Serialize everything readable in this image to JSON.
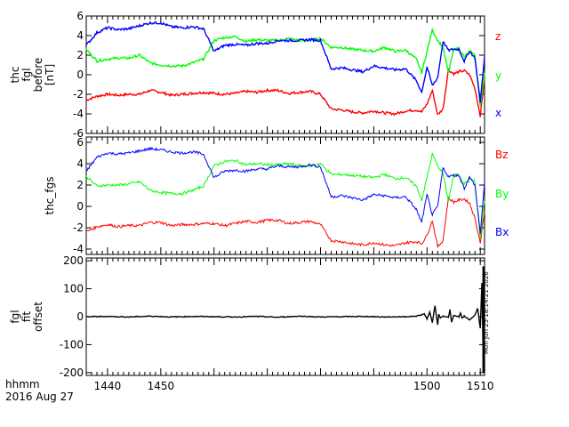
{
  "chart_data": [
    {
      "type": "line",
      "ylabel": [
        "thc",
        "fgl",
        "before",
        "[nT]"
      ],
      "ylim": [
        -6,
        6
      ],
      "yticks": [
        6,
        4,
        2,
        0,
        -2,
        -4,
        -6
      ],
      "xlim": [
        1436.0,
        1510.8
      ],
      "legend_placement": "right",
      "series": [
        {
          "name": "z",
          "color": "#ff0000",
          "x": [
            1436,
            1438,
            1440,
            1442,
            1444,
            1446,
            1448,
            1450,
            1452,
            1454,
            1456,
            1458,
            1460,
            1462,
            1464,
            1466,
            1468,
            1470,
            1472,
            1474,
            1476,
            1478,
            1480,
            1482,
            1484,
            1486,
            1488,
            1490,
            1492,
            1494,
            1496,
            1498,
            1499,
            1500,
            1501,
            1502,
            1503,
            1504,
            1505,
            1506,
            1507,
            1508,
            1509,
            1510,
            1510.8
          ],
          "values": [
            -2.6,
            -2.2,
            -2.0,
            -2.1,
            -2.0,
            -2.0,
            -1.6,
            -1.8,
            -2.1,
            -2.0,
            -1.9,
            -1.8,
            -1.9,
            -2.0,
            -1.9,
            -1.7,
            -1.8,
            -1.6,
            -1.6,
            -1.9,
            -1.8,
            -1.7,
            -2.0,
            -3.5,
            -3.6,
            -3.8,
            -3.9,
            -3.7,
            -3.9,
            -4.0,
            -3.7,
            -3.6,
            -3.8,
            -3.0,
            -1.6,
            -4.1,
            -3.5,
            0.5,
            0.1,
            0.3,
            0.4,
            0.0,
            -1.4,
            -4.2,
            -0.3
          ]
        },
        {
          "name": "y",
          "color": "#00ff00",
          "x": [
            1436,
            1438,
            1440,
            1442,
            1444,
            1446,
            1448,
            1450,
            1452,
            1454,
            1456,
            1458,
            1460,
            1462,
            1464,
            1466,
            1468,
            1470,
            1472,
            1474,
            1476,
            1478,
            1480,
            1482,
            1484,
            1486,
            1488,
            1490,
            1492,
            1494,
            1496,
            1498,
            1499,
            1500,
            1501,
            1502,
            1503,
            1504,
            1505,
            1506,
            1507,
            1508,
            1509,
            1510,
            1510.8
          ],
          "values": [
            2.6,
            1.4,
            1.6,
            1.7,
            1.7,
            2.0,
            1.2,
            1.0,
            0.9,
            0.9,
            1.2,
            1.6,
            3.5,
            3.8,
            3.9,
            3.4,
            3.6,
            3.5,
            3.5,
            3.7,
            3.5,
            3.5,
            3.7,
            2.8,
            2.8,
            2.6,
            2.5,
            2.4,
            2.8,
            2.4,
            2.5,
            1.6,
            0.2,
            2.4,
            4.6,
            3.5,
            2.8,
            0.2,
            2.6,
            2.7,
            1.8,
            2.4,
            2.0,
            -3.2,
            0.2
          ]
        },
        {
          "name": "x",
          "color": "#0000ff",
          "x": [
            1436,
            1438,
            1440,
            1442,
            1444,
            1446,
            1448,
            1450,
            1452,
            1454,
            1456,
            1458,
            1460,
            1462,
            1464,
            1466,
            1468,
            1470,
            1472,
            1474,
            1476,
            1478,
            1480,
            1482,
            1484,
            1486,
            1488,
            1490,
            1492,
            1494,
            1496,
            1498,
            1499,
            1500,
            1501,
            1502,
            1503,
            1504,
            1505,
            1506,
            1507,
            1508,
            1509,
            1510,
            1510.8
          ],
          "values": [
            3.0,
            4.3,
            4.8,
            4.6,
            4.7,
            5.0,
            5.3,
            5.3,
            4.9,
            4.8,
            4.9,
            4.7,
            2.4,
            3.0,
            3.1,
            3.0,
            3.2,
            3.2,
            3.5,
            3.5,
            3.5,
            3.6,
            3.5,
            0.6,
            0.7,
            0.5,
            0.3,
            0.9,
            0.7,
            0.5,
            0.6,
            -0.6,
            -1.8,
            0.8,
            -1.1,
            -0.3,
            3.4,
            2.5,
            2.6,
            2.6,
            1.4,
            2.4,
            1.7,
            -2.8,
            1.9
          ]
        }
      ]
    },
    {
      "type": "line",
      "ylabel": [
        "thc_fgs"
      ],
      "ylim": [
        -4.5,
        6.5
      ],
      "yticks": [
        6,
        4,
        2,
        0,
        -2,
        -4
      ],
      "xlim": [
        1436.0,
        1510.8
      ],
      "legend_placement": "right",
      "series": [
        {
          "name": "Bz",
          "color": "#ff0000",
          "x": [
            1436,
            1438,
            1440,
            1442,
            1444,
            1446,
            1448,
            1450,
            1452,
            1454,
            1456,
            1458,
            1460,
            1462,
            1464,
            1466,
            1468,
            1470,
            1472,
            1474,
            1476,
            1478,
            1480,
            1482,
            1484,
            1486,
            1488,
            1490,
            1492,
            1494,
            1496,
            1498,
            1499,
            1500,
            1501,
            1502,
            1503,
            1504,
            1505,
            1506,
            1507,
            1508,
            1509,
            1510,
            1510.8
          ],
          "values": [
            -2.4,
            -1.9,
            -1.7,
            -1.9,
            -1.8,
            -1.8,
            -1.5,
            -1.5,
            -1.8,
            -1.7,
            -1.7,
            -1.6,
            -1.6,
            -1.8,
            -1.6,
            -1.4,
            -1.5,
            -1.3,
            -1.3,
            -1.6,
            -1.5,
            -1.4,
            -1.7,
            -3.2,
            -3.3,
            -3.5,
            -3.6,
            -3.4,
            -3.6,
            -3.7,
            -3.4,
            -3.3,
            -3.5,
            -2.7,
            -1.3,
            -3.8,
            -3.2,
            0.8,
            0.4,
            0.6,
            0.7,
            0.3,
            -1.1,
            -3.4,
            -0.5
          ]
        },
        {
          "name": "By",
          "color": "#00ff00",
          "x": [
            1436,
            1438,
            1440,
            1442,
            1444,
            1446,
            1448,
            1450,
            1452,
            1454,
            1456,
            1458,
            1460,
            1462,
            1464,
            1466,
            1468,
            1470,
            1472,
            1474,
            1476,
            1478,
            1480,
            1482,
            1484,
            1486,
            1488,
            1490,
            1492,
            1494,
            1496,
            1498,
            1499,
            1500,
            1501,
            1502,
            1503,
            1504,
            1505,
            1506,
            1507,
            1508,
            1509,
            1510,
            1510.8
          ],
          "values": [
            2.8,
            1.9,
            2.0,
            2.0,
            2.1,
            2.3,
            1.5,
            1.3,
            1.2,
            1.2,
            1.5,
            1.9,
            3.8,
            4.2,
            4.3,
            3.9,
            4.0,
            3.9,
            3.9,
            4.0,
            3.8,
            3.8,
            4.0,
            3.0,
            3.0,
            2.9,
            2.8,
            2.7,
            3.0,
            2.6,
            2.7,
            1.9,
            0.6,
            2.7,
            4.9,
            3.8,
            3.1,
            0.5,
            2.9,
            3.0,
            2.1,
            2.7,
            2.3,
            -3.0,
            0.5
          ]
        },
        {
          "name": "Bx",
          "color": "#0000ff",
          "x": [
            1436,
            1438,
            1440,
            1442,
            1444,
            1446,
            1448,
            1450,
            1452,
            1454,
            1456,
            1458,
            1460,
            1462,
            1464,
            1466,
            1468,
            1470,
            1472,
            1474,
            1476,
            1478,
            1480,
            1482,
            1484,
            1486,
            1488,
            1490,
            1492,
            1494,
            1496,
            1498,
            1499,
            1500,
            1501,
            1502,
            1503,
            1504,
            1505,
            1506,
            1507,
            1508,
            1509,
            1510,
            1510.8
          ],
          "values": [
            3.3,
            4.6,
            5.0,
            4.9,
            5.0,
            5.2,
            5.4,
            5.3,
            5.1,
            5.0,
            5.1,
            4.9,
            2.7,
            3.3,
            3.4,
            3.3,
            3.5,
            3.5,
            3.8,
            3.7,
            3.7,
            3.9,
            3.7,
            0.9,
            1.0,
            0.8,
            0.6,
            1.1,
            1.0,
            0.8,
            0.9,
            -0.3,
            -1.5,
            1.1,
            -0.8,
            0.0,
            3.6,
            2.8,
            2.9,
            2.9,
            1.7,
            2.7,
            2.0,
            -2.5,
            2.2
          ]
        }
      ]
    },
    {
      "type": "line",
      "ylabel": [
        "fgl",
        "fit",
        "offset"
      ],
      "ylim": [
        -210,
        210
      ],
      "yticks": [
        200,
        100,
        0,
        -100,
        -200
      ],
      "xlim": [
        1436.0,
        1510.8
      ],
      "xticks": [
        1440,
        1450,
        1500,
        1510
      ],
      "xticklabels": [
        "1440",
        "1450",
        "1500",
        "1510"
      ],
      "series": [
        {
          "name": "",
          "color": "#000000",
          "x": [
            1436,
            1440,
            1444,
            1448,
            1452,
            1456,
            1460,
            1464,
            1468,
            1472,
            1476,
            1480,
            1484,
            1488,
            1492,
            1496,
            1498,
            1499.5,
            1500,
            1500.5,
            1501,
            1501.5,
            1502,
            1502.2,
            1502.5,
            1503,
            1504,
            1504.3,
            1504.6,
            1505,
            1506,
            1506.3,
            1506.6,
            1507,
            1508,
            1509,
            1509.5,
            1510,
            1510.3,
            1510.6,
            1510.8
          ],
          "values": [
            0,
            1,
            -1,
            2,
            -1,
            1,
            0,
            -1,
            1,
            -2,
            2,
            -1,
            0,
            1,
            -1,
            0,
            2,
            10,
            -8,
            16,
            -20,
            40,
            -30,
            10,
            -5,
            3,
            -3,
            25,
            -20,
            4,
            0,
            12,
            -6,
            2,
            -12,
            6,
            30,
            -40,
            120,
            -200,
            0
          ]
        }
      ]
    }
  ],
  "footer": {
    "line1": "hhmm",
    "line2": "2016 Aug 27"
  },
  "timestamp": "Mon Jun 25 18:14:21 2026"
}
